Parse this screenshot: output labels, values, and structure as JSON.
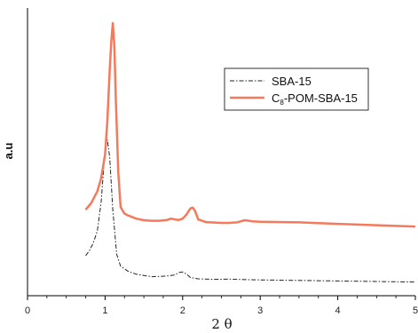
{
  "chart_data": {
    "type": "line",
    "title": "",
    "xlabel": "2 θ",
    "ylabel": "a.u",
    "xlim": [
      0,
      5
    ],
    "ylim": [
      0,
      100
    ],
    "x_ticks": [
      "0",
      "1",
      "2",
      "3",
      "4",
      "5"
    ],
    "y_ticks": [],
    "grid": false,
    "legend_position": "top-right",
    "series": [
      {
        "name": "SBA-15",
        "color": "#222222",
        "line_style": "dash-dot",
        "x": [
          0.75,
          0.8,
          0.85,
          0.9,
          0.95,
          1.0,
          1.03,
          1.06,
          1.1,
          1.15,
          1.2,
          1.3,
          1.4,
          1.5,
          1.6,
          1.7,
          1.8,
          1.9,
          1.95,
          2.0,
          2.05,
          2.1,
          2.2,
          2.4,
          2.6,
          2.8,
          3.0,
          3.5,
          4.0,
          4.5,
          5.0
        ],
        "y": [
          11.5,
          13.5,
          16.5,
          21,
          32,
          52,
          55.5,
          49,
          29,
          12,
          7.5,
          5.5,
          4.5,
          4.0,
          3.5,
          3.6,
          3.8,
          4.2,
          5.1,
          5.3,
          4.5,
          3.2,
          2.7,
          2.5,
          2.6,
          2.4,
          2.3,
          2.1,
          1.9,
          1.7,
          1.5
        ]
      },
      {
        "name": "C8-POM-SBA-15",
        "color": "#f47a5b",
        "line_style": "solid",
        "x": [
          0.75,
          0.82,
          0.9,
          0.95,
          1.0,
          1.03,
          1.06,
          1.08,
          1.1,
          1.12,
          1.14,
          1.17,
          1.2,
          1.25,
          1.3,
          1.4,
          1.5,
          1.6,
          1.7,
          1.8,
          1.85,
          1.9,
          1.95,
          2.0,
          2.05,
          2.1,
          2.13,
          2.16,
          2.2,
          2.3,
          2.5,
          2.6,
          2.7,
          2.8,
          2.9,
          3.0,
          3.5,
          4.0,
          4.5,
          5.0
        ],
        "y": [
          29,
          31.5,
          36,
          41,
          50,
          63,
          82,
          93,
          100,
          91,
          70,
          43,
          30,
          27.5,
          26.8,
          25.6,
          25.0,
          24.8,
          24.8,
          25.1,
          25.6,
          25.3,
          25.1,
          25.6,
          27.2,
          29.5,
          29.8,
          28.5,
          25.3,
          24.3,
          24.0,
          24.0,
          24.2,
          25.0,
          24.6,
          24.4,
          24.2,
          23.6,
          23.1,
          22.6
        ]
      }
    ]
  },
  "legend": {
    "entries": [
      {
        "label": "SBA-15"
      },
      {
        "label_main": "C",
        "label_sub": "8",
        "label_rest": "-POM-SBA-15"
      }
    ]
  }
}
